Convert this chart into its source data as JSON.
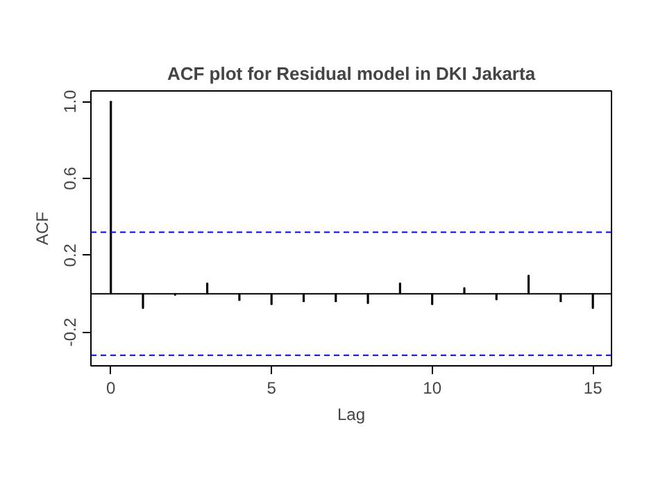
{
  "chart_data": {
    "type": "bar",
    "title": "ACF plot for Residual model in DKI Jakarta",
    "xlabel": "Lag",
    "ylabel": "ACF",
    "x": [
      0,
      1,
      2,
      3,
      4,
      5,
      6,
      7,
      8,
      9,
      10,
      11,
      12,
      13,
      14,
      15
    ],
    "values": [
      1.0,
      -0.075,
      -0.007,
      0.055,
      -0.034,
      -0.055,
      -0.04,
      -0.04,
      -0.05,
      0.055,
      -0.055,
      0.03,
      -0.03,
      0.095,
      -0.04,
      -0.075
    ],
    "color": "#000000",
    "xlim": [
      -0.62,
      15.58
    ],
    "ylim": [
      -0.375,
      1.055
    ],
    "xticks": [
      0,
      5,
      10,
      15
    ],
    "yticks": [
      -0.2,
      0.2,
      0.6,
      {
        "value": 1,
        "label": "1.0"
      }
    ],
    "ref_lines": [
      {
        "axis": "y",
        "value": 0,
        "color": "#000000",
        "line_style": "solid"
      },
      {
        "axis": "y",
        "value": 0.32,
        "color": "#0000ff",
        "line_style": "dashed"
      },
      {
        "axis": "y",
        "value": -0.32,
        "color": "#0000ff",
        "line_style": "dashed"
      }
    ],
    "grid": false
  }
}
